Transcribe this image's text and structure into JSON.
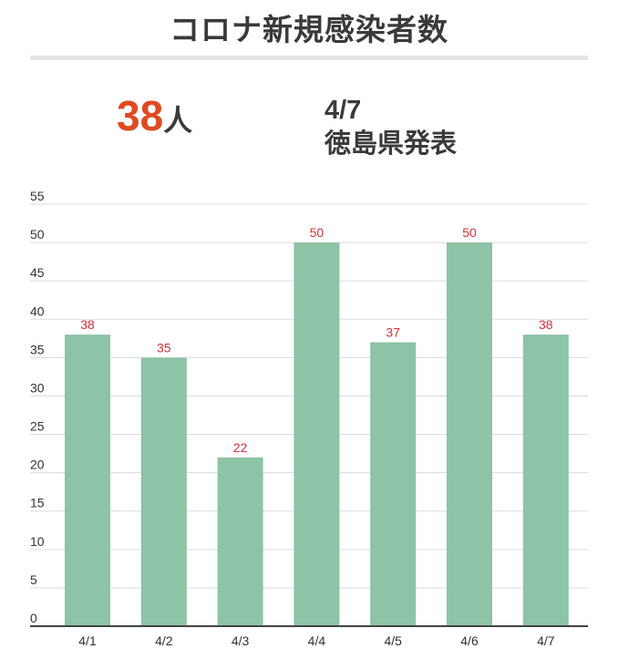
{
  "header": {
    "title": "コロナ新規感染者数",
    "count_value": "38",
    "count_unit": "人",
    "date": "4/7",
    "source": "徳島県発表"
  },
  "colors": {
    "bar": "#8dc3a6",
    "label": "#d2323a",
    "count": "#e04a22",
    "text": "#3a3a3a"
  },
  "chart_data": {
    "type": "bar",
    "categories": [
      "4/1",
      "4/2",
      "4/3",
      "4/4",
      "4/5",
      "4/6",
      "4/7"
    ],
    "values": [
      38,
      35,
      22,
      50,
      37,
      50,
      38
    ],
    "ylim": [
      0,
      55
    ],
    "yticks": [
      0,
      5,
      10,
      15,
      20,
      25,
      30,
      35,
      40,
      45,
      50,
      55
    ],
    "grid": true,
    "data_labels": true
  }
}
